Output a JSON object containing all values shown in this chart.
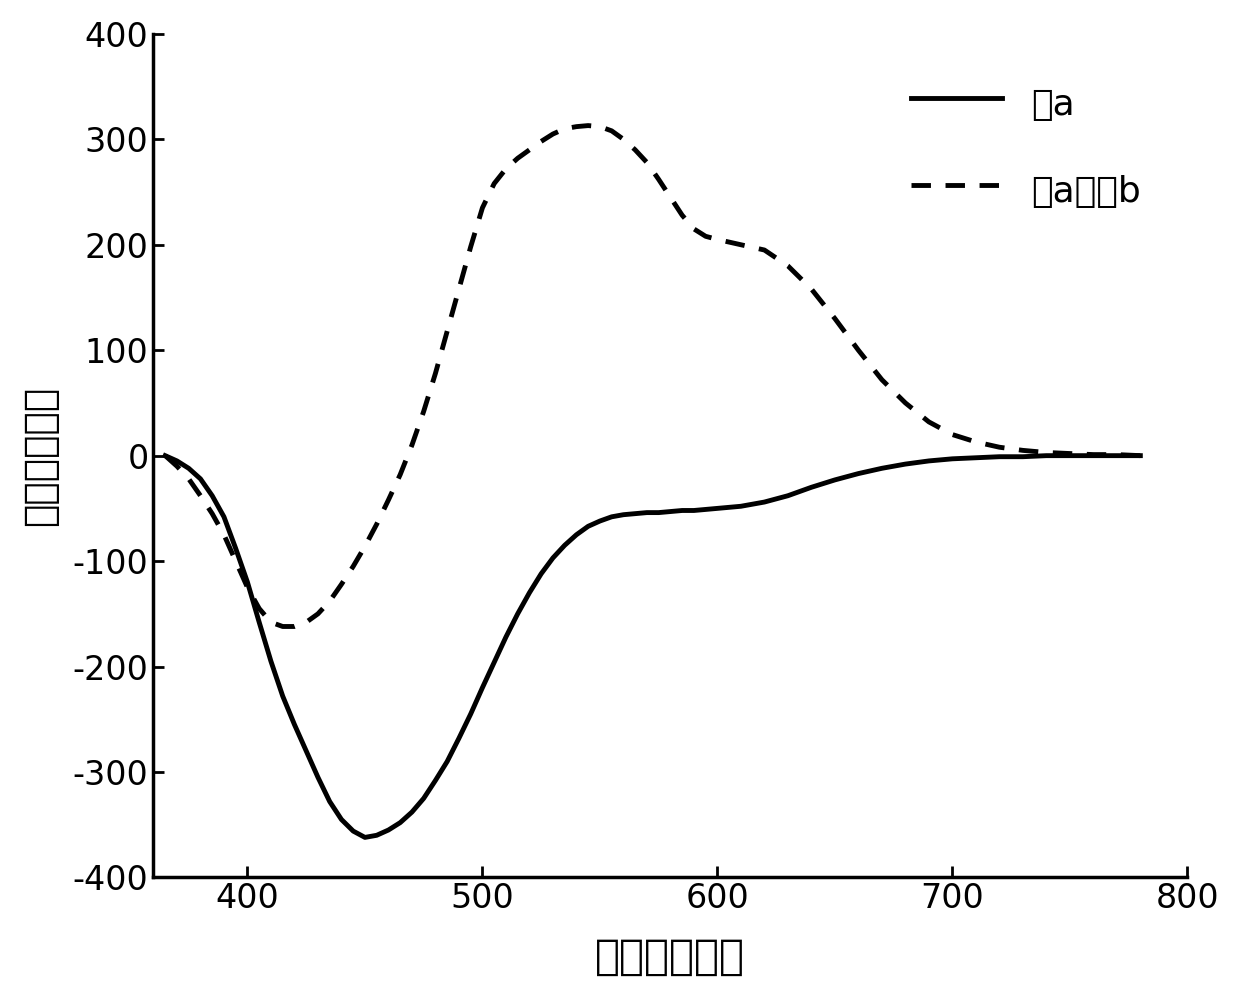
{
  "title": "",
  "xlabel": "波长（纳米）",
  "ylabel": "圆偏振光强度",
  "xlim": [
    360,
    800
  ],
  "ylim": [
    -400,
    400
  ],
  "xticks": [
    400,
    500,
    600,
    700,
    800
  ],
  "yticks": [
    -400,
    -300,
    -200,
    -100,
    0,
    100,
    200,
    300,
    400
  ],
  "legend1": "式a",
  "legend2": "式a和式b",
  "line_color": "#000000",
  "background_color": "#ffffff",
  "solid_x": [
    365,
    370,
    375,
    380,
    385,
    390,
    395,
    400,
    405,
    410,
    415,
    420,
    425,
    430,
    435,
    440,
    445,
    450,
    455,
    460,
    465,
    470,
    475,
    480,
    485,
    490,
    495,
    500,
    505,
    510,
    515,
    520,
    525,
    530,
    535,
    540,
    545,
    550,
    555,
    560,
    565,
    570,
    575,
    580,
    585,
    590,
    595,
    600,
    610,
    620,
    630,
    640,
    650,
    660,
    670,
    680,
    690,
    700,
    710,
    720,
    730,
    740,
    750,
    760,
    770,
    780
  ],
  "solid_y": [
    0,
    -5,
    -12,
    -22,
    -38,
    -58,
    -88,
    -120,
    -158,
    -195,
    -228,
    -255,
    -280,
    -305,
    -328,
    -345,
    -356,
    -362,
    -360,
    -355,
    -348,
    -338,
    -325,
    -308,
    -290,
    -268,
    -245,
    -220,
    -196,
    -172,
    -150,
    -130,
    -112,
    -97,
    -85,
    -75,
    -67,
    -62,
    -58,
    -56,
    -55,
    -54,
    -54,
    -53,
    -52,
    -52,
    -51,
    -50,
    -48,
    -44,
    -38,
    -30,
    -23,
    -17,
    -12,
    -8,
    -5,
    -3,
    -2,
    -1,
    -1,
    0,
    0,
    0,
    0,
    0
  ],
  "dashed_x": [
    365,
    370,
    375,
    380,
    385,
    390,
    395,
    400,
    405,
    410,
    415,
    420,
    425,
    430,
    435,
    440,
    445,
    450,
    455,
    460,
    465,
    470,
    475,
    480,
    485,
    490,
    495,
    500,
    505,
    510,
    515,
    520,
    525,
    530,
    535,
    540,
    545,
    550,
    555,
    560,
    565,
    570,
    575,
    580,
    585,
    590,
    595,
    600,
    610,
    620,
    630,
    640,
    650,
    660,
    670,
    680,
    690,
    700,
    710,
    720,
    730,
    740,
    750,
    760,
    770,
    780
  ],
  "dashed_y": [
    0,
    -10,
    -22,
    -38,
    -55,
    -75,
    -100,
    -125,
    -145,
    -158,
    -162,
    -162,
    -158,
    -150,
    -138,
    -122,
    -105,
    -86,
    -65,
    -42,
    -18,
    10,
    42,
    78,
    118,
    158,
    198,
    235,
    258,
    272,
    282,
    290,
    298,
    305,
    310,
    312,
    313,
    312,
    308,
    300,
    290,
    278,
    262,
    245,
    228,
    215,
    208,
    205,
    200,
    195,
    180,
    158,
    130,
    100,
    72,
    50,
    32,
    20,
    13,
    8,
    5,
    3,
    2,
    1,
    1,
    0
  ]
}
